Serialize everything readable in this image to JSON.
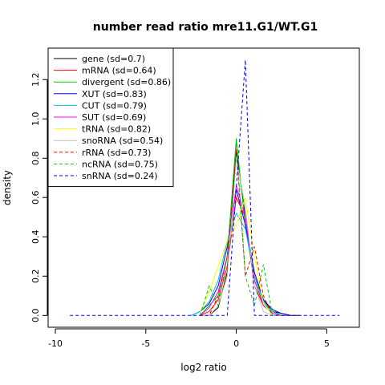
{
  "chart_data": {
    "type": "line",
    "title": "number read ratio mre11.G1/WT.G1",
    "xlabel": "log2 ratio",
    "ylabel": "density",
    "xlim": [
      -10.4,
      6.8
    ],
    "ylim": [
      -0.06,
      1.36
    ],
    "x_ticks": [
      -10,
      -5,
      0,
      5
    ],
    "x_tick_labels": [
      "-10",
      "-5",
      "0",
      "5"
    ],
    "y_ticks": [
      0.0,
      0.2,
      0.4,
      0.6,
      0.8,
      1.0,
      1.2
    ],
    "y_tick_labels": [
      "0.0",
      "0.2",
      "0.4",
      "0.6",
      "0.8",
      "1.0",
      "1.2"
    ],
    "legend_position": "top-left",
    "series": [
      {
        "name": "gene (sd=0.7)",
        "color": "#000000",
        "dash": "solid",
        "x": [
          -1.5,
          -1.0,
          -0.5,
          0.0,
          0.5,
          1.0,
          1.5,
          2.0,
          2.5,
          3.0,
          3.5
        ],
        "y": [
          0.0,
          0.04,
          0.22,
          0.84,
          0.5,
          0.2,
          0.08,
          0.02,
          0.01,
          0.0,
          0.0
        ]
      },
      {
        "name": "mRNA (sd=0.64)",
        "color": "#ff0000",
        "dash": "solid",
        "x": [
          -2.0,
          -1.5,
          -1.0,
          -0.5,
          0.0,
          0.5,
          1.0,
          1.5,
          2.0,
          2.5,
          3.0
        ],
        "y": [
          0.0,
          0.02,
          0.08,
          0.25,
          0.6,
          0.5,
          0.15,
          0.05,
          0.01,
          0.0,
          0.0
        ]
      },
      {
        "name": "divergent (sd=0.86)",
        "color": "#00cd00",
        "dash": "solid",
        "x": [
          -2.0,
          -1.5,
          -1.0,
          -0.5,
          0.0,
          0.5,
          1.0,
          1.5,
          2.0,
          2.5
        ],
        "y": [
          0.0,
          0.05,
          0.1,
          0.3,
          0.9,
          0.45,
          0.18,
          0.06,
          0.02,
          0.0
        ]
      },
      {
        "name": "XUT (sd=0.83)",
        "color": "#0000ff",
        "dash": "solid",
        "x": [
          -2.5,
          -2.0,
          -1.5,
          -1.0,
          -0.5,
          0.0,
          0.5,
          1.0,
          1.5,
          2.0,
          2.5,
          3.0
        ],
        "y": [
          0.0,
          0.02,
          0.06,
          0.15,
          0.35,
          0.64,
          0.46,
          0.22,
          0.08,
          0.03,
          0.01,
          0.0
        ]
      },
      {
        "name": "CUT (sd=0.79)",
        "color": "#00cdcd",
        "dash": "solid",
        "x": [
          -2.5,
          -2.0,
          -1.5,
          -1.0,
          -0.5,
          0.0,
          0.5,
          1.0,
          1.5,
          2.0,
          2.5
        ],
        "y": [
          0.0,
          0.02,
          0.07,
          0.18,
          0.38,
          0.52,
          0.44,
          0.2,
          0.07,
          0.02,
          0.0
        ]
      },
      {
        "name": "SUT (sd=0.69)",
        "color": "#ff00ff",
        "dash": "solid",
        "x": [
          -2.0,
          -1.5,
          -1.0,
          -0.5,
          0.0,
          0.5,
          1.0,
          1.5,
          2.0,
          2.5
        ],
        "y": [
          0.0,
          0.04,
          0.12,
          0.3,
          0.66,
          0.5,
          0.18,
          0.05,
          0.01,
          0.0
        ]
      },
      {
        "name": "tRNA (sd=0.82)",
        "color": "#ffff00",
        "dash": "solid",
        "x": [
          -2.0,
          -1.5,
          -1.0,
          -0.5,
          0.0,
          0.5,
          1.0,
          1.5,
          2.0
        ],
        "y": [
          0.02,
          0.12,
          0.25,
          0.38,
          0.46,
          0.6,
          0.3,
          0.06,
          0.0
        ]
      },
      {
        "name": "snoRNA (sd=0.54)",
        "color": "#bebebe",
        "dash": "solid",
        "x": [
          -1.5,
          -1.0,
          -0.5,
          0.0,
          0.5,
          1.0,
          1.5,
          2.0
        ],
        "y": [
          0.0,
          0.05,
          0.2,
          0.8,
          0.55,
          0.15,
          0.02,
          0.0
        ]
      },
      {
        "name": "rRNA (sd=0.73)",
        "color": "#ff0000",
        "dash": "dashed",
        "x": [
          -2.0,
          -1.5,
          -1.0,
          -0.5,
          0.0,
          0.5,
          1.0,
          1.5,
          2.0
        ],
        "y": [
          0.0,
          0.0,
          0.1,
          0.3,
          0.85,
          0.2,
          0.35,
          0.1,
          0.0
        ]
      },
      {
        "name": "ncRNA (sd=0.75)",
        "color": "#00cd00",
        "dash": "dashed",
        "x": [
          -2.0,
          -1.5,
          -1.0,
          -0.5,
          0.0,
          0.5,
          1.0,
          1.5,
          2.0,
          2.5
        ],
        "y": [
          0.0,
          0.15,
          0.05,
          0.3,
          0.88,
          0.2,
          0.05,
          0.26,
          0.0,
          0.0
        ]
      },
      {
        "name": "snRNA (sd=0.24)",
        "color": "#0000ff",
        "dash": "dashed",
        "x": [
          -9.2,
          -0.5,
          0.5,
          1.0,
          5.7
        ],
        "y": [
          0.0,
          0.0,
          1.3,
          0.0,
          0.0
        ]
      }
    ]
  }
}
